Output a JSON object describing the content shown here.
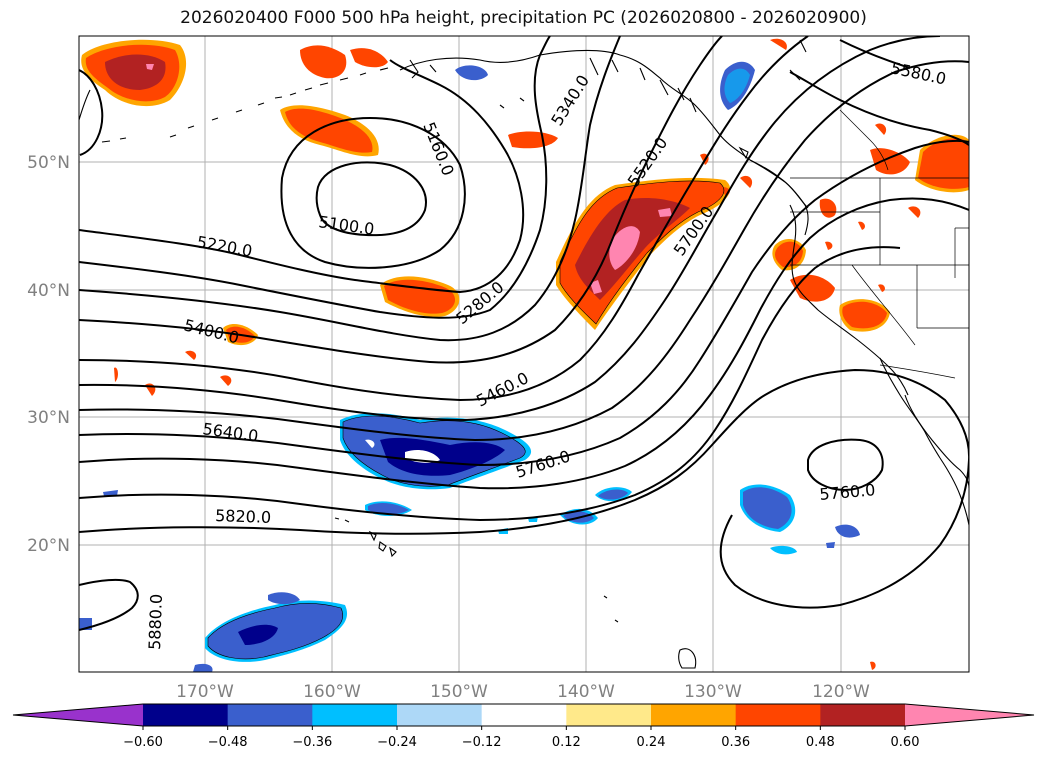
{
  "title": "2026020400 F000 500 hPa height, precipitation PC (2026020800 - 2026020900)",
  "lat_labels": [
    "50°N",
    "40°N",
    "30°N",
    "20°N"
  ],
  "lon_labels": [
    "170°W",
    "160°W",
    "150°W",
    "140°W",
    "130°W",
    "120°W"
  ],
  "contour_labels": [
    "5160.0",
    "5100.0",
    "5220.0",
    "5340.0",
    "5520.0",
    "5580.0",
    "5700.0",
    "5280.0",
    "5400.0",
    "5460.0",
    "5640.0",
    "5760.0",
    "5760.0",
    "5820.0",
    "5880.0"
  ],
  "colorbar": {
    "ticks": [
      "−0.60",
      "−0.48",
      "−0.36",
      "−0.24",
      "−0.12",
      "0.12",
      "0.24",
      "0.36",
      "0.48",
      "0.60"
    ],
    "colors": [
      "#9932cc",
      "#00008b",
      "#3a5fcd",
      "#00bfff",
      "#add8f7",
      "#ffffff",
      "#ffe98a",
      "#ffa500",
      "#ff4500",
      "#b22222",
      "#ff85b0"
    ]
  }
}
